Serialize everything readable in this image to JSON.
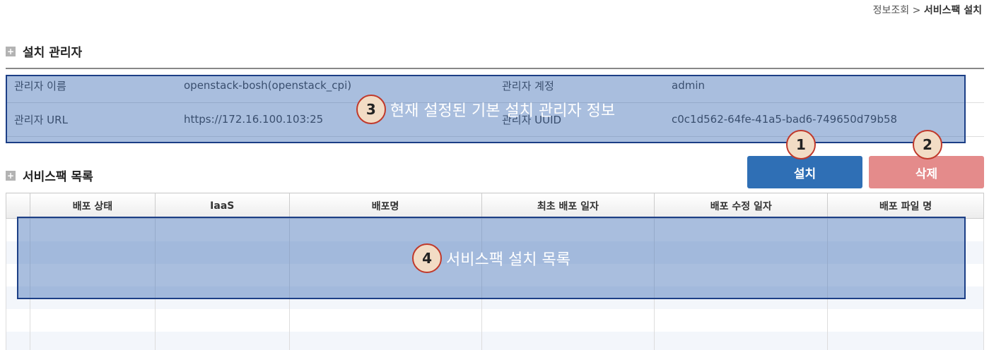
{
  "breadcrumb": {
    "parent": "정보조회",
    "separator": ">",
    "current": "서비스팩 설치"
  },
  "installer_section": {
    "title": "설치 관리자",
    "rows": [
      {
        "label1": "관리자 이름",
        "value1": "openstack-bosh(openstack_cpi)",
        "label2": "관리자 계정",
        "value2": "admin"
      },
      {
        "label1": "관리자 URL",
        "value1": "https://172.16.100.103:25",
        "label2": "관리자 UUID",
        "value2": "c0c1d562-64fe-41a5-bad6-749650d79b58"
      }
    ]
  },
  "servicepack_section": {
    "title": "서비스팩 목록"
  },
  "buttons": {
    "install": "설치",
    "delete": "삭제",
    "install_color": "#2f6fb5",
    "delete_color": "#e48b8b"
  },
  "list": {
    "columns": [
      "배포 상태",
      "IaaS",
      "배포명",
      "최초 배포 일자",
      "배포 수정 일자",
      "배포 파일 명"
    ]
  },
  "annotations": {
    "badge1": "1",
    "badge2": "2",
    "badge3": "3",
    "badge4": "4",
    "overlay3_text": "현재 설정된 기본 설치 관리자 정보",
    "overlay4_text": "서비스팩 설치 목록"
  }
}
